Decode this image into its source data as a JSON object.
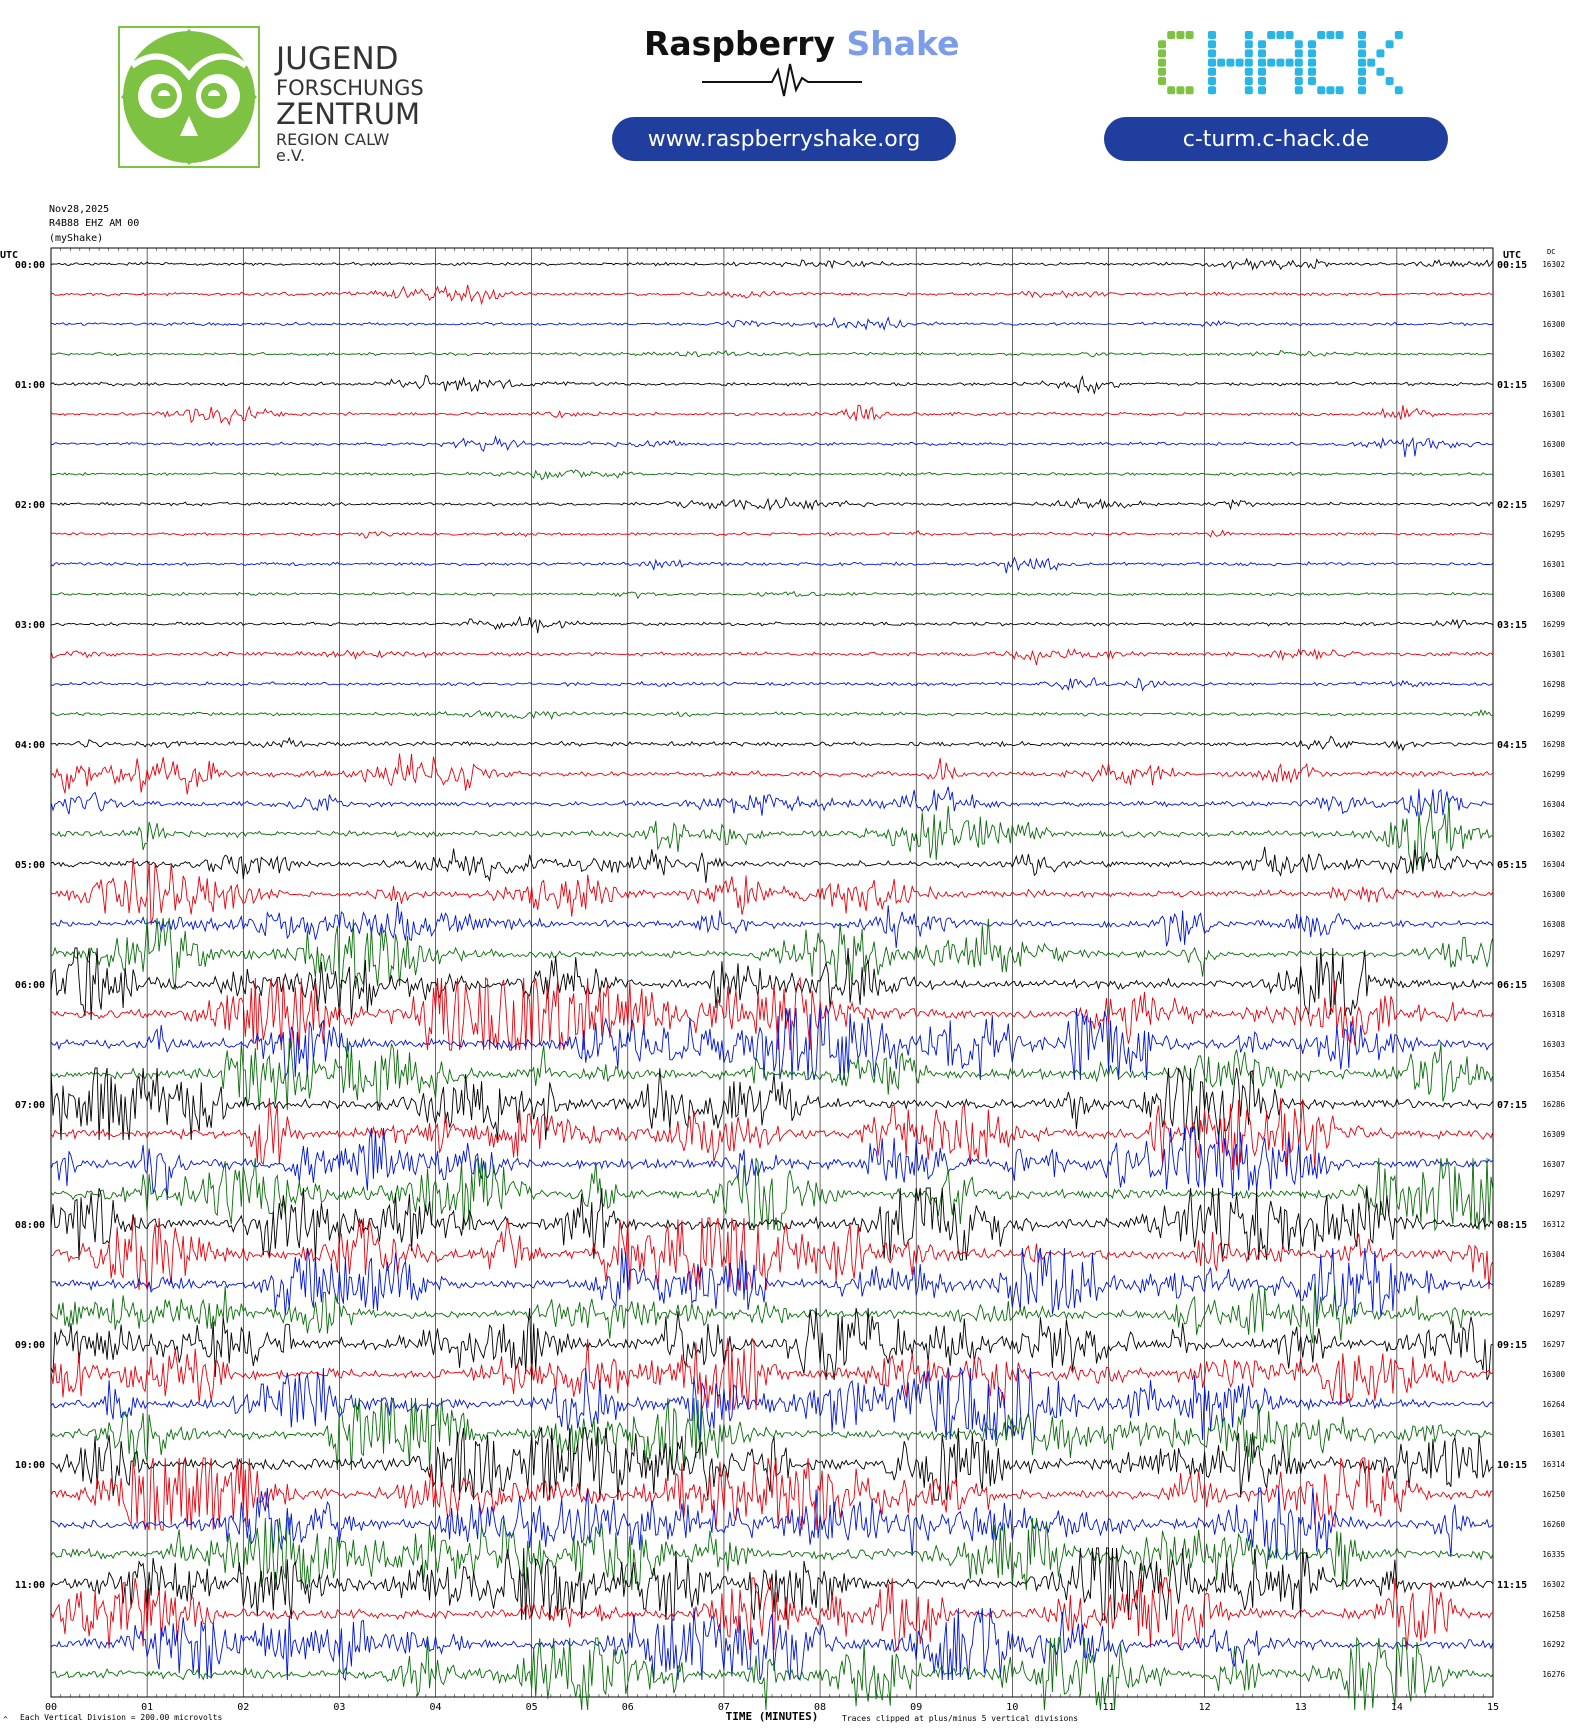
{
  "header": {
    "jfz": {
      "line1": "JUGEND",
      "line2": "FORSCHUNGS",
      "line3": "ZENTRUM",
      "line4": "REGION CALW e.V.",
      "green": "#7dc242"
    },
    "rs": {
      "word1": "Raspberry",
      "word2": "Shake",
      "url": "www.raspberryshake.org",
      "word2_color": "#7b9ce8"
    },
    "chack": {
      "logo": "CHACK",
      "url": "c-turm.c-hack.de",
      "color1": "#7dc242",
      "color2": "#29b6e6"
    },
    "pill_color": "#1f3e9e"
  },
  "chart_data": {
    "type": "line",
    "title_lines": [
      "Nov28,2025",
      "R4B88 EHZ AM 00",
      "(myShake)"
    ],
    "left_utc_label": "UTC",
    "right_utc_label": "UTC",
    "dc_label": "DC",
    "xlabel": "TIME (MINUTES)",
    "xticks": [
      "00",
      "01",
      "02",
      "03",
      "04",
      "05",
      "06",
      "07",
      "08",
      "09",
      "10",
      "11",
      "12",
      "13",
      "14",
      "15"
    ],
    "xlim": [
      0,
      15
    ],
    "footer_left": "Each Vertical Division =  200.00 microvolts",
    "footer_right": "Traces clipped at plus/minus 5 vertical divisions",
    "corner_mark": "^",
    "trace_colors": [
      "#000000",
      "#e8000b",
      "#0015d9",
      "#0a6e0a"
    ],
    "left_hour_labels": [
      "00:00",
      "01:00",
      "02:00",
      "03:00",
      "04:00",
      "05:00",
      "06:00",
      "07:00",
      "08:00",
      "09:00",
      "10:00",
      "11:00"
    ],
    "right_hour_labels": [
      "00:15",
      "01:15",
      "02:15",
      "03:15",
      "04:15",
      "05:15",
      "06:15",
      "07:15",
      "08:15",
      "09:15",
      "10:15",
      "11:15"
    ],
    "dc_values": [
      16302,
      16301,
      16300,
      16302,
      16300,
      16301,
      16300,
      16301,
      16297,
      16295,
      16301,
      16300,
      16299,
      16301,
      16298,
      16299,
      16298,
      16299,
      16304,
      16302,
      16304,
      16300,
      16308,
      16297,
      16308,
      16318,
      16303,
      16354,
      16286,
      16309,
      16307,
      16297,
      16312,
      16304,
      16289,
      16297,
      16297,
      16300,
      16264,
      16301,
      16314,
      16250,
      16260,
      16335,
      16302,
      16258,
      16292,
      16276
    ],
    "activity": [
      0.5,
      0.6,
      0.5,
      0.4,
      0.6,
      0.6,
      0.6,
      0.4,
      0.6,
      0.5,
      0.6,
      0.4,
      0.6,
      0.8,
      0.7,
      0.6,
      1.0,
      1.4,
      1.3,
      1.8,
      1.8,
      1.8,
      2.0,
      2.2,
      3.0,
      3.4,
      3.2,
      3.0,
      3.2,
      3.0,
      3.0,
      3.0,
      3.4,
      3.2,
      3.0,
      2.6,
      3.6,
      3.2,
      3.0,
      3.0,
      3.6,
      3.0,
      3.2,
      3.4,
      3.4,
      3.2,
      3.0,
      3.2
    ],
    "grid": true
  }
}
